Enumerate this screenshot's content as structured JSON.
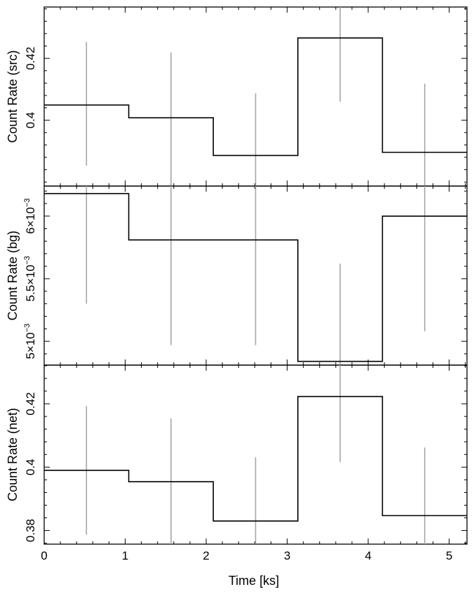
{
  "chart_data": {
    "type": "line",
    "style": "step-with-errorbars",
    "x_label": "Time [ks]",
    "x_ticks": [
      0,
      1,
      2,
      3,
      4,
      5
    ],
    "x_tick_labels": [
      "0",
      "1",
      "2",
      "3",
      "4",
      "5"
    ],
    "xlim": [
      0,
      5.22
    ],
    "bin_edges": [
      0,
      1.044,
      2.088,
      3.132,
      4.176,
      5.22
    ],
    "bin_centers": [
      0.522,
      1.566,
      2.61,
      3.654,
      4.698
    ],
    "colors": {
      "step": "#000000",
      "errorbar": "#a6a6a6"
    },
    "panels": [
      {
        "ylabel": "Count Rate (src)",
        "ylim": [
          0.3787,
          0.4366
        ],
        "y_ticks": [
          0.4,
          0.42
        ],
        "y_tick_labels": [
          "0.4",
          "0.42"
        ],
        "values": [
          0.4049,
          0.4008,
          0.3886,
          0.4266,
          0.3896
        ],
        "err_low": [
          0.3853,
          0.3787,
          0.3787,
          0.406,
          0.3787
        ],
        "err_high": [
          0.4253,
          0.4219,
          0.4087,
          0.4366,
          0.4118
        ]
      },
      {
        "ylabel": "Count Rate (bg)",
        "ylim": [
          0.00481,
          0.00624
        ],
        "y_ticks": [
          0.005,
          0.0055,
          0.006
        ],
        "y_tick_labels": [
          {
            "mantissa": "5×10",
            "exp": "−3"
          },
          {
            "mantissa": "5.5×10",
            "exp": "−3"
          },
          {
            "mantissa": "6×10",
            "exp": "−3"
          }
        ],
        "values": [
          0.00618,
          0.00581,
          0.00581,
          0.00484,
          0.006
        ],
        "err_low": [
          0.0053,
          0.00497,
          0.00497,
          0.00481,
          0.00508
        ],
        "err_high": [
          0.00624,
          0.00624,
          0.00624,
          0.00562,
          0.00624
        ]
      },
      {
        "ylabel": "Count Rate (net)",
        "ylim": [
          0.3757,
          0.4322
        ],
        "y_ticks": [
          0.38,
          0.4,
          0.42
        ],
        "y_tick_labels": [
          "0.38",
          "0.4",
          "0.42"
        ],
        "values": [
          0.399,
          0.3954,
          0.383,
          0.4223,
          0.3847
        ],
        "err_low": [
          0.3787,
          0.3757,
          0.3757,
          0.4016,
          0.3757
        ],
        "err_high": [
          0.4193,
          0.4154,
          0.4031,
          0.4322,
          0.4062
        ]
      }
    ]
  }
}
